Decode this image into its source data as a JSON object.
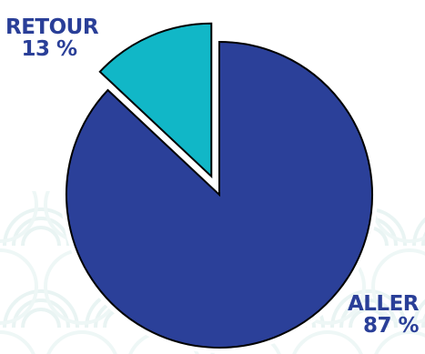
{
  "chart_data": {
    "type": "pie",
    "slices": [
      {
        "label": "ALLER",
        "value": 87,
        "display": "87 %",
        "color": "#2b4099",
        "exploded": false
      },
      {
        "label": "RETOUR",
        "value": 13,
        "display": "13 %",
        "color": "#11b7c7",
        "exploded": true
      }
    ],
    "start_angle_deg": 0,
    "direction": "clockwise",
    "outline_color": "#000000",
    "label_color": "#2a3f98",
    "background_pattern": "light teal wave pattern"
  }
}
